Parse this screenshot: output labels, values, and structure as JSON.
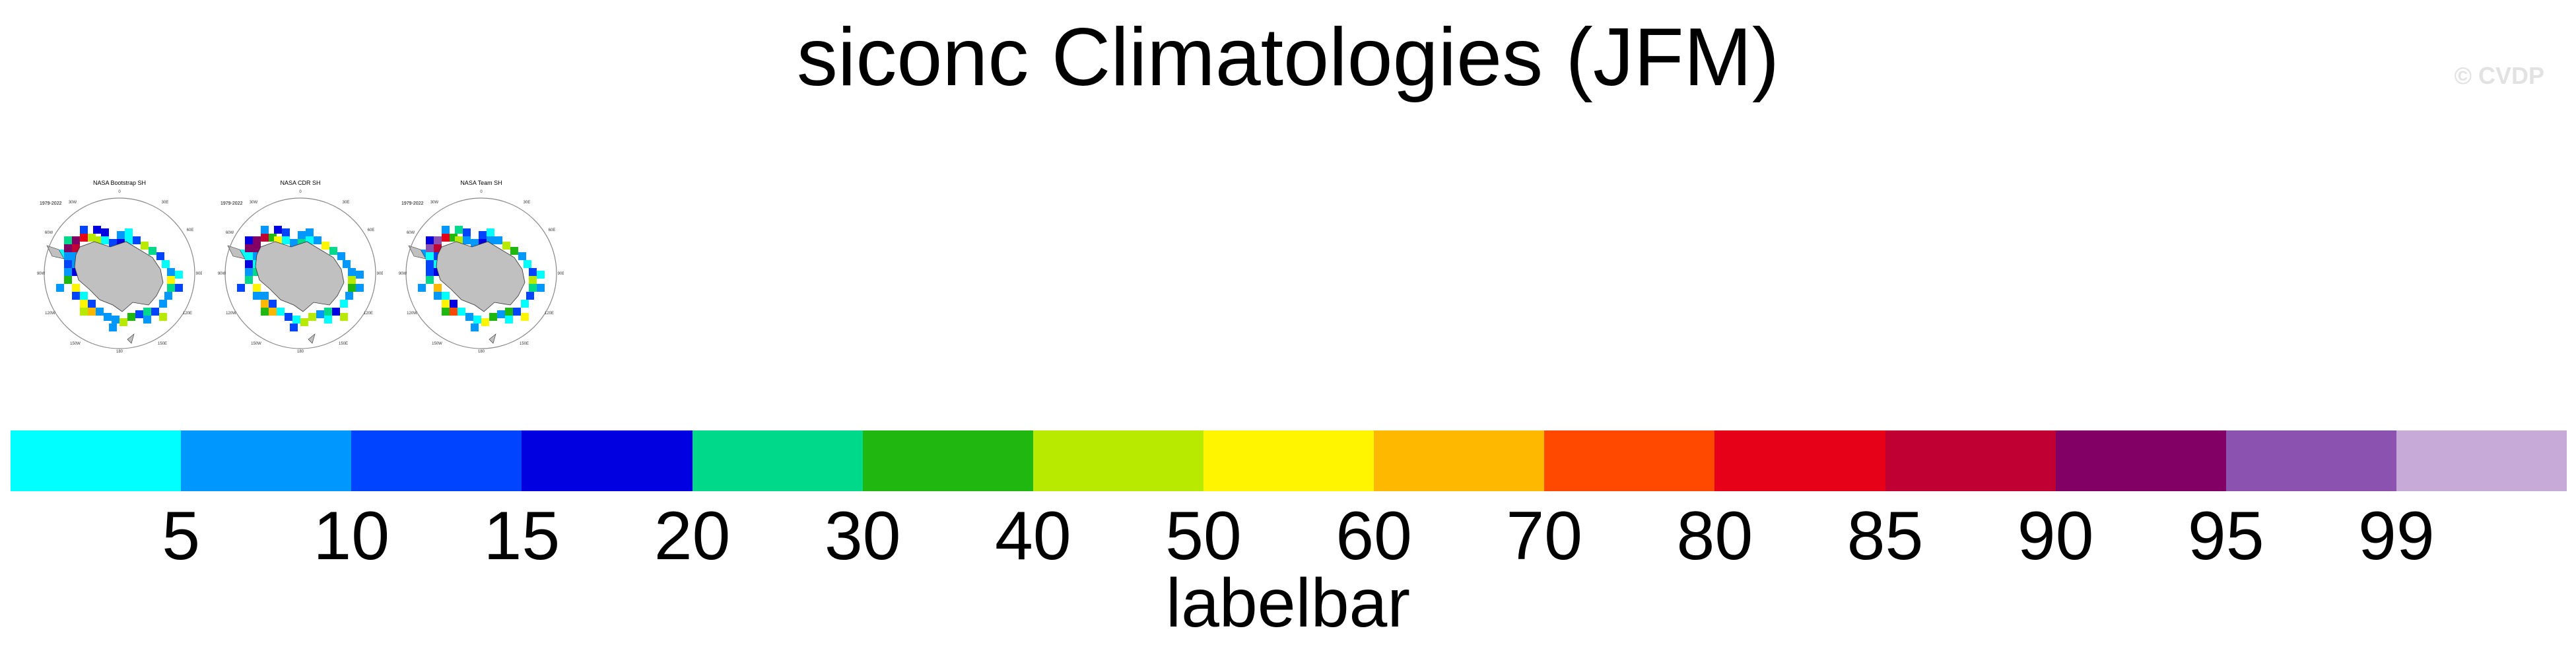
{
  "title": "siconc Climatologies (JFM)",
  "watermark": "© CVDP",
  "panels": [
    {
      "title": "NASA Bootstrap SH",
      "period": "1979-2022"
    },
    {
      "title": "NASA CDR SH",
      "period": "1979-2022"
    },
    {
      "title": "NASA Team SH",
      "period": "1979-2022"
    }
  ],
  "map_colors": {
    "land": "#c0c0c0",
    "coast": "#333333",
    "circle": "#888888"
  },
  "labelbar": {
    "title": "labelbar",
    "colors": [
      "#00ffff",
      "#0098ff",
      "#0044ff",
      "#0000e0",
      "#00d98a",
      "#20b810",
      "#b8ea00",
      "#fff500",
      "#ffb800",
      "#ff4800",
      "#e60018",
      "#c00032",
      "#820066",
      "#8c52b0",
      "#c8aad8"
    ],
    "ticks": [
      "5",
      "10",
      "15",
      "20",
      "30",
      "40",
      "50",
      "60",
      "70",
      "80",
      "85",
      "90",
      "95",
      "99"
    ]
  }
}
